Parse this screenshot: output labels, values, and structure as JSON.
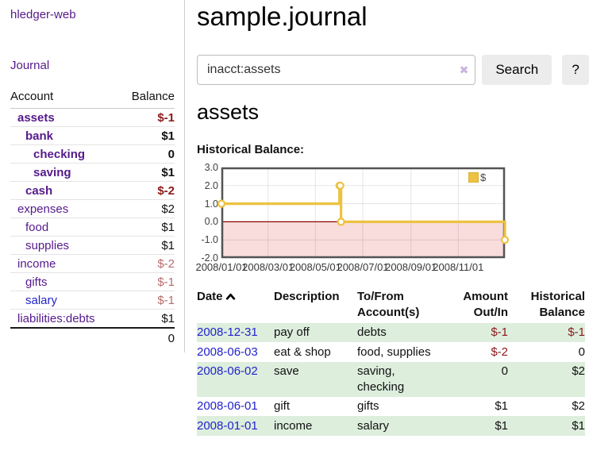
{
  "app": {
    "title": "hledger-web"
  },
  "nav": {
    "journal": "Journal"
  },
  "sidebar": {
    "headers": {
      "account": "Account",
      "balance": "Balance"
    },
    "accounts": [
      {
        "name": "assets",
        "balance": "$-1",
        "depth": 1,
        "in_current_view": true
      },
      {
        "name": "bank",
        "balance": "$1",
        "depth": 2,
        "in_current_view": true
      },
      {
        "name": "checking",
        "balance": "0",
        "depth": 3,
        "in_current_view": true
      },
      {
        "name": "saving",
        "balance": "$1",
        "depth": 3,
        "in_current_view": true
      },
      {
        "name": "cash",
        "balance": "$-2",
        "depth": 2,
        "in_current_view": true
      },
      {
        "name": "expenses",
        "balance": "$2",
        "depth": 1,
        "in_current_view": false
      },
      {
        "name": "food",
        "balance": "$1",
        "depth": 2,
        "in_current_view": false
      },
      {
        "name": "supplies",
        "balance": "$1",
        "depth": 2,
        "in_current_view": false
      },
      {
        "name": "income",
        "balance": "$-2",
        "depth": 1,
        "in_current_view": false
      },
      {
        "name": "gifts",
        "balance": "$-1",
        "depth": 2,
        "in_current_view": false
      },
      {
        "name": "salary",
        "balance": "$-1",
        "depth": 2,
        "in_current_view": false
      },
      {
        "name": "liabilities:debts",
        "balance": "$1",
        "depth": 1,
        "in_current_view": false
      }
    ],
    "total": "0"
  },
  "header": {
    "title": "sample.journal"
  },
  "search": {
    "value": "inacct:assets",
    "clear_icon": "✖",
    "submit_label": "Search",
    "help_label": "?"
  },
  "account_page": {
    "heading": "assets",
    "chart_title": "Historical Balance:"
  },
  "chart_data": {
    "type": "line",
    "line_style": "step",
    "title": "Historical Balance:",
    "series": [
      {
        "name": "$",
        "color": "#edc240",
        "points": [
          {
            "x": "2008/01/01",
            "y": 1
          },
          {
            "x": "2008/06/01",
            "y": 2
          },
          {
            "x": "2008/06/02",
            "y": 2
          },
          {
            "x": "2008/06/03",
            "y": 0
          },
          {
            "x": "2008/12/31",
            "y": -1
          }
        ]
      }
    ],
    "xlim": [
      "2008/01/01",
      "2008/12/31"
    ],
    "ylim": [
      -2,
      3
    ],
    "x_ticks": [
      "2008/01/01",
      "2008/03/01",
      "2008/05/01",
      "2008/07/01",
      "2008/09/01",
      "2008/11/01"
    ],
    "y_ticks": [
      3.0,
      2.0,
      1.0,
      0.0,
      -1.0,
      -2.0
    ],
    "grid": true,
    "legend": {
      "label": "$",
      "position": "top-right"
    },
    "colors": {
      "line": "#edc240",
      "negative_region": "#f9dcdc",
      "zero_line": "#8b0000",
      "border": "#545454"
    }
  },
  "register": {
    "headers": {
      "date": "Date",
      "description": "Description",
      "accounts": "To/From Account(s)",
      "amount": "Amount Out/In",
      "balance": "Historical Balance"
    },
    "sort": {
      "column": "Date",
      "direction": "ascending"
    },
    "rows": [
      {
        "date": "2008-12-31",
        "description": "pay off",
        "accounts": "debts",
        "amount": "$-1",
        "balance": "$-1"
      },
      {
        "date": "2008-06-03",
        "description": "eat & shop",
        "accounts": "food, supplies",
        "amount": "$-2",
        "balance": "0"
      },
      {
        "date": "2008-06-02",
        "description": "save",
        "accounts": "saving, checking",
        "amount": "0",
        "balance": "$2"
      },
      {
        "date": "2008-06-01",
        "description": "gift",
        "accounts": "gifts",
        "amount": "$1",
        "balance": "$2"
      },
      {
        "date": "2008-01-01",
        "description": "income",
        "accounts": "salary",
        "amount": "$1",
        "balance": "$1"
      }
    ]
  },
  "colors": {
    "link_purple": "#551a8b",
    "link_blue": "#2323cc",
    "negative_red": "#8b1a1a",
    "negative_muted": "#b96b6b",
    "row_stripe_green": "#ddeedd",
    "chart_gold": "#edc240",
    "chart_negative_pink": "#f9dcdc"
  }
}
